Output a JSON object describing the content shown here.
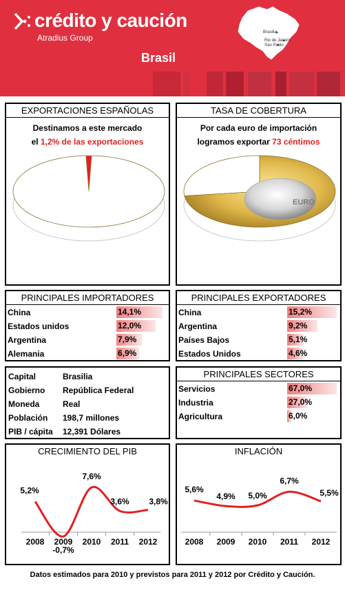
{
  "brand": {
    "name": "crédito y caución",
    "group": "Atradius Group"
  },
  "country": "Brasil",
  "map": {
    "labels": [
      "Brasilia",
      "Rio de Janeiro",
      "Sao Paulo"
    ]
  },
  "colors": {
    "brand_red": "#e03040",
    "accent_red": "#e02020",
    "bar_fill": "#f08080",
    "line": "#e02020"
  },
  "exportaciones": {
    "title": "EXPORTACIONES ESPAÑOLAS",
    "line1": "Destinamos a este mercado",
    "line2_prefix": "el ",
    "line2_highlight": "1,2% de las exportaciones"
  },
  "cobertura": {
    "title": "TASA DE COBERTURA",
    "line1": "Por cada euro de importación",
    "line2_prefix": "logramos exportar ",
    "line2_highlight": "73 céntimos"
  },
  "importadores": {
    "title": "PRINCIPALES IMPORTADORES",
    "rows": [
      {
        "country": "China",
        "value": "14,1%"
      },
      {
        "country": "Estados unidos",
        "value": "12,0%"
      },
      {
        "country": "Argentina",
        "value": "7,9%"
      },
      {
        "country": "Alemania",
        "value": "6,9%"
      }
    ]
  },
  "exportadores": {
    "title": "PRINCIPALES EXPORTADORES",
    "rows": [
      {
        "country": "China",
        "value": "15,2%"
      },
      {
        "country": "Argentina",
        "value": "9,2%"
      },
      {
        "country": "Países Bajos",
        "value": "5,1%"
      },
      {
        "country": "Estados Unidos",
        "value": "4,6%"
      }
    ]
  },
  "info": {
    "rows": [
      {
        "key": "Capital",
        "value": "Brasilia"
      },
      {
        "key": "Gobierno",
        "value": "República Federal"
      },
      {
        "key": "Moneda",
        "value": "Real"
      },
      {
        "key": "Población",
        "value": "198,7 millones"
      },
      {
        "key": "PIB / cápita",
        "value": "12,391 Dólares"
      }
    ]
  },
  "sectores": {
    "title": "PRINCIPALES SECTORES",
    "rows": [
      {
        "sector": "Servicios",
        "value": "67,0%"
      },
      {
        "sector": "Industria",
        "value": "27,0%"
      },
      {
        "sector": "Agricultura",
        "value": "6,0%"
      }
    ]
  },
  "pib": {
    "title": "CRECIMIENTO DEL PIB"
  },
  "inflacion": {
    "title": "INFLACIÓN"
  },
  "footer": "Datos estimados para 2010 y previstos para 2011  y 2012 por Crédito y Caución.",
  "chart_data": [
    {
      "type": "pie",
      "title": "EXPORTACIONES ESPAÑOLAS",
      "slices": [
        {
          "label": "1,2%",
          "value": 1.2,
          "color": "#e02020"
        },
        {
          "label": "",
          "value": 98.8,
          "color": "#ffffff"
        }
      ]
    },
    {
      "type": "pie",
      "title": "TASA DE COBERTURA",
      "slices": [
        {
          "label": "73 céntimos",
          "value": 73,
          "color": "#d8b040"
        },
        {
          "label": "",
          "value": 27,
          "color": "#ffffff"
        }
      ]
    },
    {
      "type": "bar",
      "title": "PRINCIPALES IMPORTADORES",
      "categories": [
        "China",
        "Estados unidos",
        "Argentina",
        "Alemania"
      ],
      "values": [
        14.1,
        12.0,
        7.9,
        6.9
      ]
    },
    {
      "type": "bar",
      "title": "PRINCIPALES EXPORTADORES",
      "categories": [
        "China",
        "Argentina",
        "Países Bajos",
        "Estados Unidos"
      ],
      "values": [
        15.2,
        9.2,
        5.1,
        4.6
      ]
    },
    {
      "type": "bar",
      "title": "PRINCIPALES SECTORES",
      "categories": [
        "Servicios",
        "Industria",
        "Agricultura"
      ],
      "values": [
        67.0,
        27.0,
        6.0
      ]
    },
    {
      "type": "line",
      "title": "CRECIMIENTO DEL PIB",
      "x": [
        "2008",
        "2009",
        "2010",
        "2011",
        "2012"
      ],
      "values": [
        5.2,
        -0.7,
        7.6,
        3.6,
        3.8
      ],
      "labels": [
        "5,2%",
        "-0,7%",
        "7,6%",
        "3,6%",
        "3,8%"
      ],
      "ylim": [
        -1.5,
        9
      ]
    },
    {
      "type": "line",
      "title": "INFLACIÓN",
      "x": [
        "2008",
        "2009",
        "2010",
        "2011",
        "2012"
      ],
      "values": [
        5.6,
        4.9,
        5.0,
        6.7,
        5.5
      ],
      "labels": [
        "5,6%",
        "4,9%",
        "5,0%",
        "6,7%",
        "5,5%"
      ],
      "ylim": [
        0,
        10
      ]
    }
  ]
}
